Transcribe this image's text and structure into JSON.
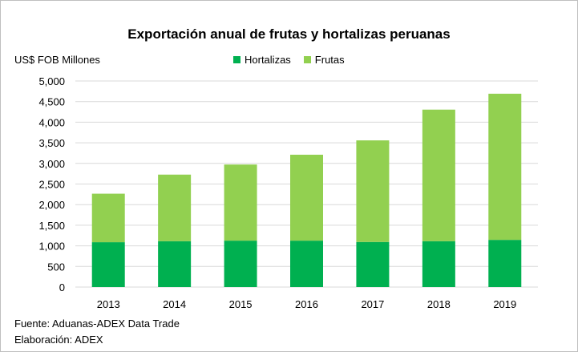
{
  "chart_data": {
    "type": "bar",
    "stacked": true,
    "title": "Exportación anual de frutas y hortalizas peruanas",
    "ylabel": "US$ FOB Millones",
    "xlabel": "",
    "ylim": [
      0,
      5000
    ],
    "yticks": [
      "0",
      "500",
      "1,000",
      "1,500",
      "2,000",
      "2,500",
      "3,000",
      "3,500",
      "4,000",
      "4,500",
      "5,000"
    ],
    "grid": true,
    "legend_position": "top",
    "categories": [
      "2013",
      "2014",
      "2015",
      "2016",
      "2017",
      "2018",
      "2019"
    ],
    "series": [
      {
        "name": "Hortalizas",
        "color": "#00b050",
        "values": [
          1088,
          1113,
          1126,
          1126,
          1094,
          1113,
          1145
        ]
      },
      {
        "name": "Frutas",
        "color": "#92d050",
        "values": [
          1177,
          1615,
          1847,
          2085,
          2465,
          3192,
          3546
        ]
      }
    ]
  },
  "source": "Fuente: Aduanas-ADEX Data Trade",
  "elaboration": "Elaboración: ADEX"
}
